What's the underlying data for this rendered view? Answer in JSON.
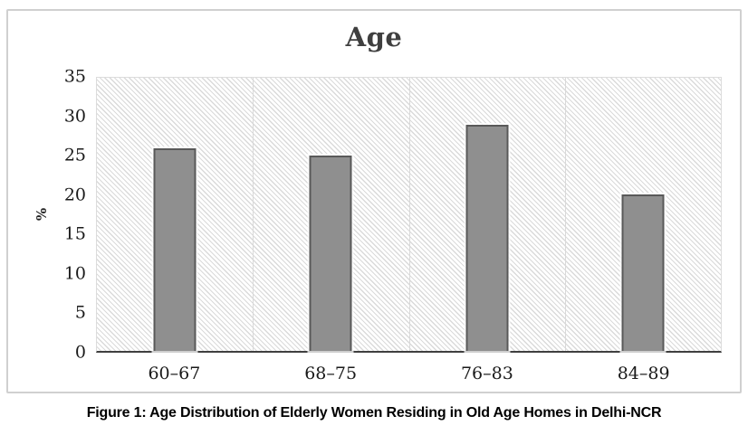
{
  "figure": {
    "caption": "Figure 1: Age Distribution of Elderly Women Residing in Old Age Homes in Delhi-NCR"
  },
  "chart_data": {
    "type": "bar",
    "title": "Age",
    "categories": [
      "60–67",
      "68–75",
      "76–83",
      "84–89"
    ],
    "values": [
      26,
      25,
      29,
      20
    ],
    "xlabel": "",
    "ylabel": "%",
    "ylim": [
      0,
      35
    ],
    "yticks": [
      0,
      5,
      10,
      15,
      20,
      25,
      30,
      35
    ],
    "grid": "vertical category separators only",
    "legend_position": "none",
    "plot_background": "light diagonal hatch",
    "colors": {
      "bar_fill": "#8F8F8F",
      "bar_border": "#595959",
      "hatch_line": "#DADADA",
      "gridline": "#D9D9D9",
      "axis_line": "#3F3F3F",
      "frame_border": "#D0D0D0",
      "title_text": "#3F3F3F",
      "tick_text": "#1A1A1A",
      "caption_text": "#000000"
    }
  }
}
